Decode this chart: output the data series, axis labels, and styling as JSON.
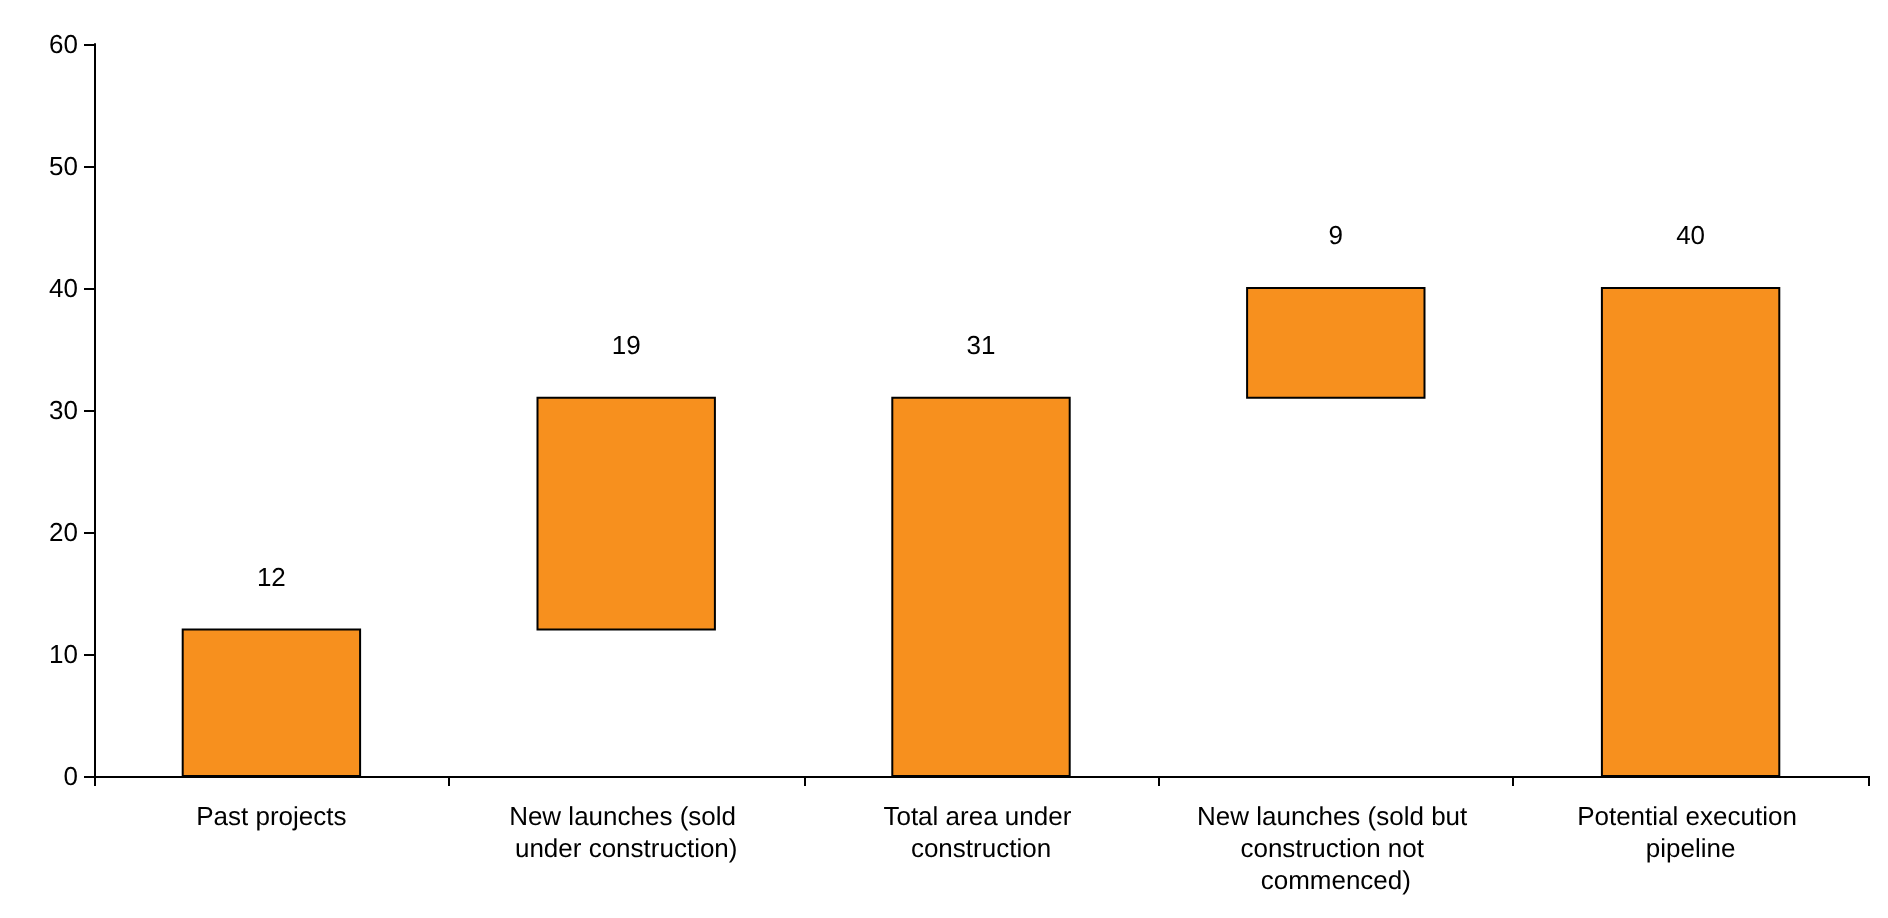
{
  "chart_data": {
    "type": "bar",
    "categories": [
      "Past projects",
      "New launches (sold under construction)",
      "Total area under construction",
      "New launches (sold but construction not commenced)",
      "Potential execution pipeline"
    ],
    "values": [
      12,
      19,
      31,
      9,
      40
    ],
    "base": [
      0,
      12,
      0,
      31,
      0
    ],
    "color": "#f7901e",
    "ylim": [
      0,
      60
    ],
    "yticks": [
      0,
      10,
      20,
      30,
      40,
      50,
      60
    ],
    "data_labels": true
  }
}
